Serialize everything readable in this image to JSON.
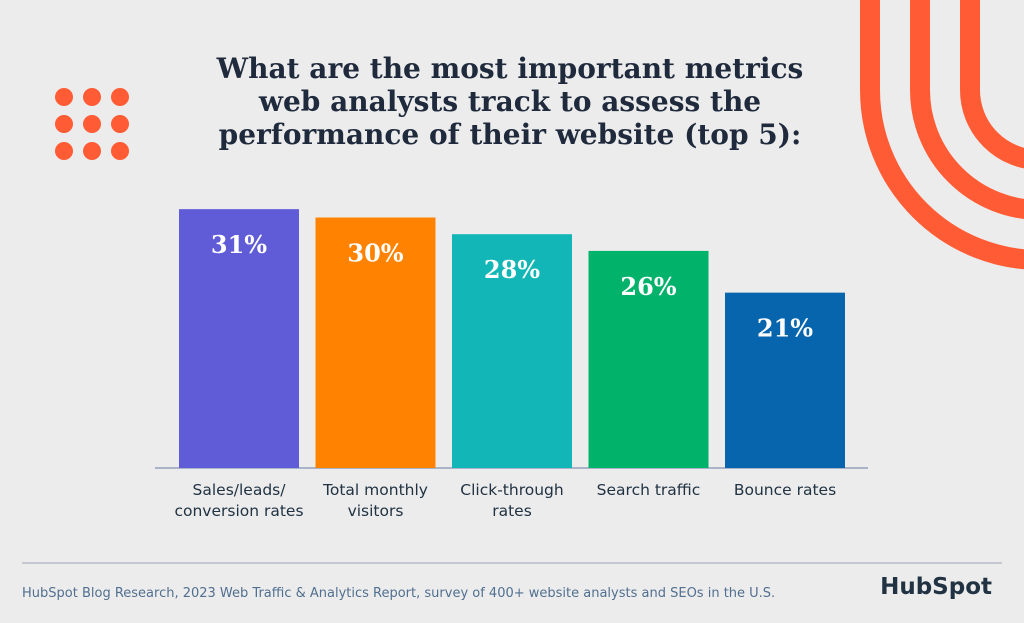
{
  "chart_data": {
    "type": "bar",
    "title": "What are the most important metrics web analysts track to assess the performance of their website (top 5):",
    "categories": [
      "Sales/leads/ conversion rates",
      "Total monthly visitors",
      "Click-through rates",
      "Search traffic",
      "Bounce rates"
    ],
    "values": [
      31,
      30,
      28,
      26,
      21
    ],
    "value_labels": [
      "31%",
      "30%",
      "28%",
      "26%",
      "21%"
    ],
    "colors": [
      "#605bd6",
      "#ff8300",
      "#12b6b6",
      "#00b26a",
      "#0765ae"
    ]
  },
  "source": "HubSpot Blog Research, 2023 Web Traffic & Analytics Report, survey of 400+ website analysts and SEOs in the U.S.",
  "logo": "HubSpot"
}
